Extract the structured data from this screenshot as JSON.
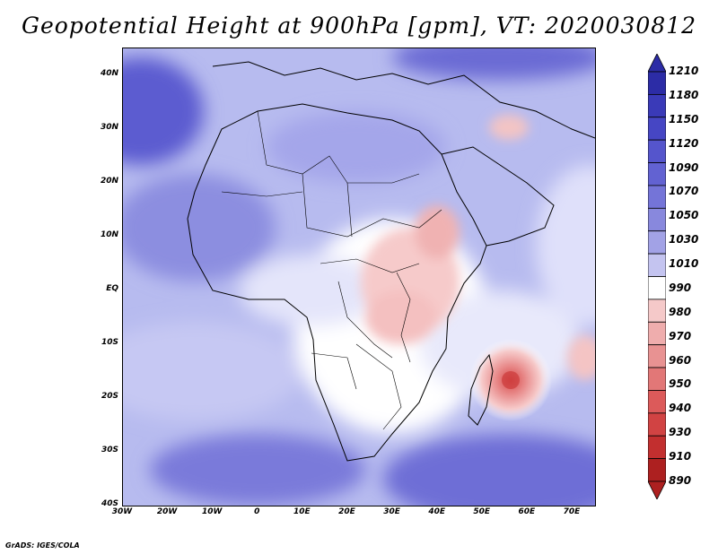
{
  "title": "Geopotential Height at 900hPa [gpm], VT: 2020030812",
  "credit": "GrADS: IGES/COLA",
  "map": {
    "lat_labels": [
      "40N",
      "30N",
      "20N",
      "10N",
      "EQ",
      "10S",
      "20S",
      "30S",
      "40S"
    ],
    "lat_values": [
      40,
      30,
      20,
      10,
      0,
      -10,
      -20,
      -30,
      -40
    ],
    "lon_labels": [
      "30W",
      "20W",
      "10W",
      "0",
      "10E",
      "20E",
      "30E",
      "40E",
      "50E",
      "60E",
      "70E"
    ],
    "lon_values": [
      -30,
      -20,
      -10,
      0,
      10,
      20,
      30,
      40,
      50,
      60,
      70
    ],
    "lon_range": [
      -30,
      75
    ],
    "lat_range": [
      -40,
      45
    ]
  },
  "colorbar": {
    "labels": [
      "1210",
      "1180",
      "1150",
      "1120",
      "1090",
      "1070",
      "1050",
      "1030",
      "1010",
      "990",
      "980",
      "970",
      "960",
      "950",
      "940",
      "930",
      "910",
      "890"
    ],
    "colors": [
      "#2c2ca6",
      "#3a3ab8",
      "#4646c4",
      "#5555cc",
      "#6262d2",
      "#7474d8",
      "#8888dd",
      "#a2a2e6",
      "#c4c4f0",
      "#ffffff",
      "#f5c9c9",
      "#efadad",
      "#e89292",
      "#e27777",
      "#dc5a5a",
      "#d14343",
      "#c22f2f",
      "#ad2020"
    ]
  }
}
